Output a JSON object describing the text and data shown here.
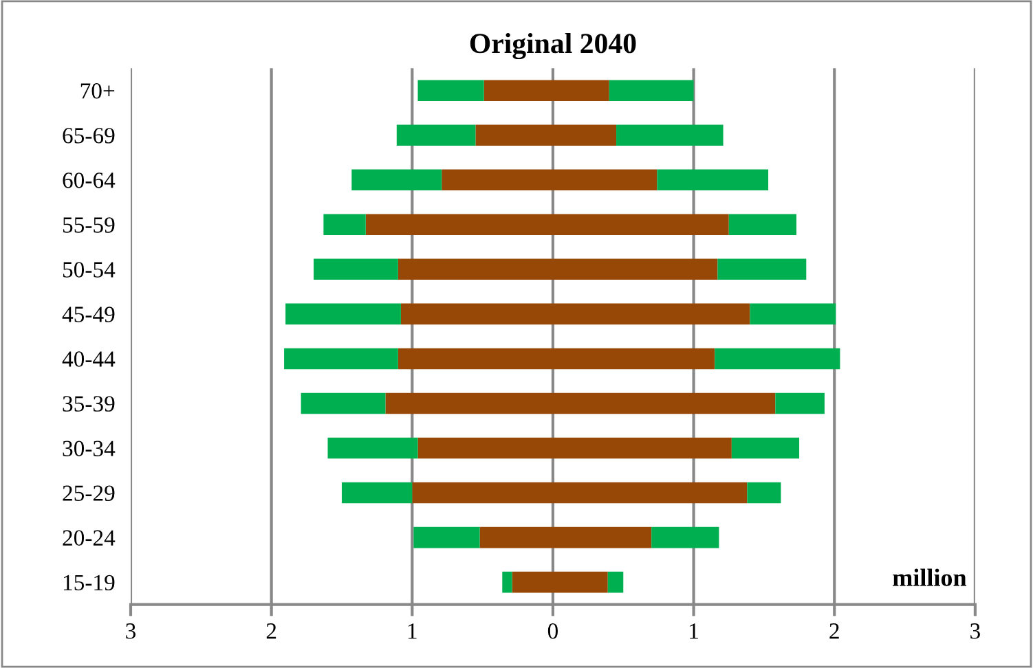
{
  "chart_data": {
    "type": "bar",
    "title": "Original 2040",
    "orientation": "horizontal",
    "stacked": true,
    "categories": [
      "70+",
      "65-69",
      "60-64",
      "55-59",
      "50-54",
      "45-49",
      "40-44",
      "35-39",
      "30-34",
      "25-29",
      "20-24",
      "15-19"
    ],
    "series": [
      {
        "color": "#974807",
        "values": [
          -0.49,
          -0.55,
          -0.79,
          -1.33,
          -1.1,
          -1.08,
          -1.1,
          -1.19,
          -0.96,
          -1.0,
          -0.52,
          -0.29
        ]
      },
      {
        "color": "#00b050",
        "values": [
          -0.47,
          -0.56,
          -0.64,
          -0.3,
          -0.6,
          -0.82,
          -0.81,
          -0.6,
          -0.64,
          -0.5,
          -0.47,
          -0.07
        ]
      },
      {
        "color": "#974807",
        "values": [
          0.4,
          0.45,
          0.74,
          1.25,
          1.17,
          1.4,
          1.15,
          1.58,
          1.27,
          1.38,
          0.7,
          0.39
        ]
      },
      {
        "color": "#00b050",
        "values": [
          0.6,
          0.76,
          0.79,
          0.48,
          0.63,
          0.61,
          0.89,
          0.35,
          0.48,
          0.24,
          0.48,
          0.11
        ]
      }
    ],
    "xlim": [
      -3,
      3
    ],
    "xticks": [
      {
        "value": -3,
        "label": "3"
      },
      {
        "value": -2,
        "label": "2"
      },
      {
        "value": -1,
        "label": "1"
      },
      0,
      1,
      2,
      3
    ],
    "grid": "x",
    "annotations": [
      "million"
    ]
  }
}
